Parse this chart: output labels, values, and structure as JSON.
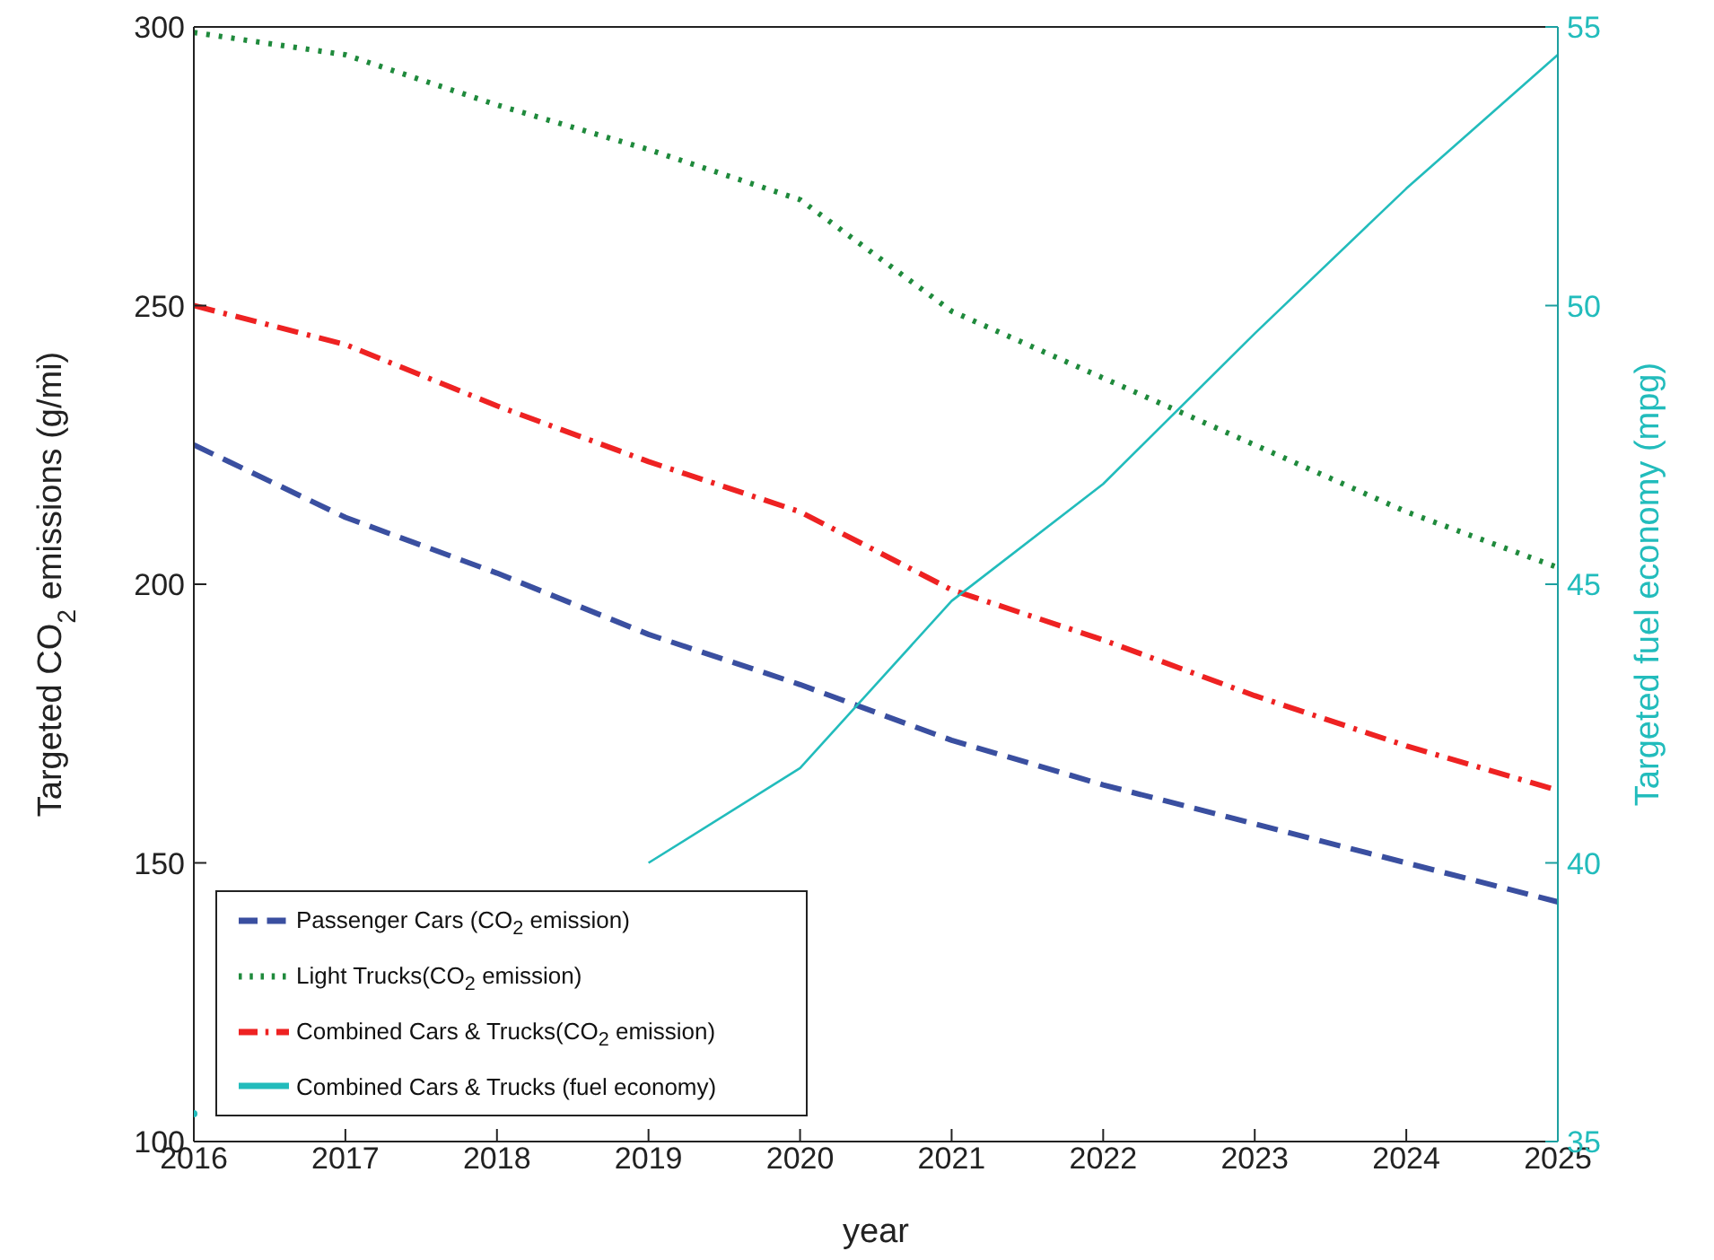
{
  "chart_data": {
    "type": "line",
    "xlabel": "year",
    "ylabel": "Targeted CO$_{2}$ emissions (g/mi)",
    "y2label": "Targeted fuel economy (mpg)",
    "x": [
      2016,
      2017,
      2018,
      2019,
      2020,
      2021,
      2022,
      2023,
      2024,
      2025
    ],
    "xlim": [
      2016,
      2025
    ],
    "xticks": [
      2016,
      2017,
      2018,
      2019,
      2020,
      2021,
      2022,
      2023,
      2024,
      2025
    ],
    "ylim": [
      100,
      300
    ],
    "yticks": [
      100,
      150,
      200,
      250,
      300
    ],
    "y2lim": [
      35,
      55
    ],
    "y2ticks": [
      35,
      40,
      45,
      50,
      55
    ],
    "legend": "bottom left",
    "grid": false,
    "series": [
      {
        "name": "Passenger Cars (CO$_{2}$ emission)",
        "color": "#3a4fa0",
        "line_style": "dashed",
        "values": [
          225,
          212,
          202,
          191,
          182,
          172,
          164,
          157,
          150,
          143
        ]
      },
      {
        "name": "Light Trucks(CO$_{2}$ emission)",
        "color": "#1f8a3c",
        "line_style": "dotted",
        "values": [
          299,
          295,
          286,
          278,
          269,
          249,
          237,
          225,
          213,
          203
        ]
      },
      {
        "name": "Combined Cars & Trucks(CO$_{2}$ emission)",
        "color": "#ee2222",
        "line_style": "dashdot",
        "values": [
          250,
          243,
          232,
          222,
          213,
          199,
          190,
          180,
          171,
          163
        ]
      },
      {
        "name": "Combined Cars & Trucks (fuel economy)",
        "color": "#22bcbc",
        "line_style": "solid",
        "axis": "y2",
        "values": [
          35.5,
          null,
          null,
          40.0,
          41.7,
          44.7,
          46.8,
          49.5,
          52.1,
          54.5
        ]
      }
    ]
  }
}
